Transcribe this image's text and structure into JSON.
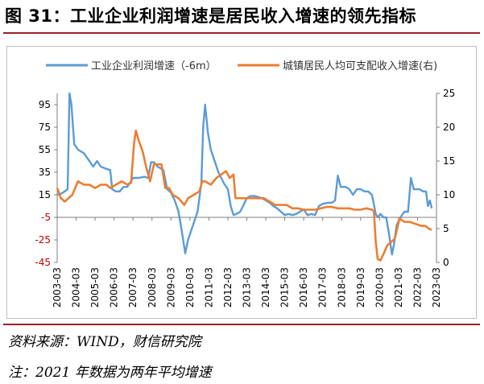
{
  "figure": {
    "title": "图 31：工业企业利润增速是居民收入增速的领先指标",
    "source": "资料来源：WIND，财信研究院",
    "note": "注：2021 年数据为两年平均增速"
  },
  "colors": {
    "series1": "#5b9bd5",
    "series2": "#ed7d31",
    "axis": "#7f7f7f",
    "left_tick": "#c00000",
    "accent_rule": "#9e1f28"
  },
  "chart_data": {
    "type": "line",
    "title": "",
    "legend_position": "top",
    "grid": false,
    "x_ticks": [
      "2003-03",
      "2004-03",
      "2005-03",
      "2006-03",
      "2007-03",
      "2008-03",
      "2009-03",
      "2010-03",
      "2011-03",
      "2012-03",
      "2013-03",
      "2014-03",
      "2015-03",
      "2016-03",
      "2017-03",
      "2018-03",
      "2019-03",
      "2020-03",
      "2021-03",
      "2022-03",
      "2023-03"
    ],
    "y_left": {
      "min": -45,
      "max": 105,
      "ticks": [
        95,
        75,
        55,
        35,
        15,
        -5,
        -25,
        -45
      ]
    },
    "y_right": {
      "min": 0,
      "max": 25,
      "ticks": [
        25,
        20,
        15,
        10,
        5,
        0
      ]
    },
    "series": [
      {
        "name": "工业企业利润增速（-6m）",
        "axis": "left",
        "points": [
          [
            2003.2,
            15
          ],
          [
            2003.4,
            16
          ],
          [
            2003.6,
            18
          ],
          [
            2003.75,
            20
          ],
          [
            2003.85,
            105
          ],
          [
            2003.95,
            95
          ],
          [
            2004.1,
            60
          ],
          [
            2004.3,
            55
          ],
          [
            2004.6,
            52
          ],
          [
            2004.9,
            45
          ],
          [
            2005.1,
            40
          ],
          [
            2005.3,
            45
          ],
          [
            2005.5,
            40
          ],
          [
            2005.8,
            38
          ],
          [
            2006.0,
            37
          ],
          [
            2006.1,
            20
          ],
          [
            2006.3,
            18
          ],
          [
            2006.5,
            18
          ],
          [
            2006.7,
            22
          ],
          [
            2006.9,
            22
          ],
          [
            2007.2,
            30
          ],
          [
            2007.5,
            30
          ],
          [
            2007.8,
            31
          ],
          [
            2008.0,
            30
          ],
          [
            2008.15,
            44
          ],
          [
            2008.3,
            44
          ],
          [
            2008.5,
            40
          ],
          [
            2008.8,
            37
          ],
          [
            2009.0,
            20
          ],
          [
            2009.2,
            17
          ],
          [
            2009.4,
            10
          ],
          [
            2009.6,
            0
          ],
          [
            2009.8,
            -20
          ],
          [
            2009.95,
            -37
          ],
          [
            2010.1,
            -25
          ],
          [
            2010.3,
            -15
          ],
          [
            2010.6,
            0
          ],
          [
            2010.8,
            25
          ],
          [
            2010.9,
            75
          ],
          [
            2011.0,
            95
          ],
          [
            2011.15,
            70
          ],
          [
            2011.3,
            55
          ],
          [
            2011.5,
            45
          ],
          [
            2011.7,
            35
          ],
          [
            2011.85,
            30
          ],
          [
            2012.0,
            25
          ],
          [
            2012.2,
            20
          ],
          [
            2012.35,
            5
          ],
          [
            2012.5,
            -3
          ],
          [
            2012.65,
            -2
          ],
          [
            2012.85,
            0
          ],
          [
            2013.0,
            5
          ],
          [
            2013.2,
            12
          ],
          [
            2013.4,
            14
          ],
          [
            2013.6,
            14
          ],
          [
            2013.8,
            13
          ],
          [
            2014.0,
            12
          ],
          [
            2014.2,
            10
          ],
          [
            2014.4,
            8
          ],
          [
            2014.6,
            5
          ],
          [
            2014.8,
            3
          ],
          [
            2015.0,
            0
          ],
          [
            2015.2,
            -3
          ],
          [
            2015.4,
            -2
          ],
          [
            2015.6,
            -3
          ],
          [
            2015.8,
            -2
          ],
          [
            2016.0,
            0
          ],
          [
            2016.2,
            2
          ],
          [
            2016.4,
            -3
          ],
          [
            2016.6,
            -2
          ],
          [
            2016.8,
            -3
          ],
          [
            2017.0,
            5
          ],
          [
            2017.2,
            7
          ],
          [
            2017.5,
            8
          ],
          [
            2017.7,
            8
          ],
          [
            2017.85,
            10
          ],
          [
            2018.0,
            32
          ],
          [
            2018.15,
            22
          ],
          [
            2018.4,
            22
          ],
          [
            2018.6,
            20
          ],
          [
            2018.8,
            15
          ],
          [
            2019.0,
            20
          ],
          [
            2019.2,
            20
          ],
          [
            2019.4,
            18
          ],
          [
            2019.6,
            18
          ],
          [
            2019.8,
            15
          ],
          [
            2020.0,
            -2
          ],
          [
            2020.1,
            -5
          ],
          [
            2020.25,
            -2
          ],
          [
            2020.4,
            -5
          ],
          [
            2020.55,
            -5
          ],
          [
            2020.7,
            -20
          ],
          [
            2020.85,
            -38
          ],
          [
            2020.95,
            -30
          ],
          [
            2021.1,
            -12
          ],
          [
            2021.3,
            -5
          ],
          [
            2021.5,
            0
          ],
          [
            2021.7,
            0
          ],
          [
            2021.85,
            30
          ],
          [
            2022.0,
            20
          ],
          [
            2022.3,
            20
          ],
          [
            2022.5,
            18
          ],
          [
            2022.65,
            18
          ],
          [
            2022.75,
            5
          ],
          [
            2022.85,
            10
          ],
          [
            2022.95,
            3
          ]
        ]
      },
      {
        "name": "城镇居民人均可支配收入增速(右)",
        "axis": "right",
        "points": [
          [
            2003.2,
            11.0
          ],
          [
            2003.4,
            9.5
          ],
          [
            2003.6,
            9.0
          ],
          [
            2003.8,
            9.5
          ],
          [
            2004.0,
            10.0
          ],
          [
            2004.3,
            12.0
          ],
          [
            2004.6,
            11.5
          ],
          [
            2004.9,
            11.5
          ],
          [
            2005.2,
            11.0
          ],
          [
            2005.5,
            11.5
          ],
          [
            2005.8,
            11.5
          ],
          [
            2006.0,
            11.0
          ],
          [
            2006.3,
            11.5
          ],
          [
            2006.6,
            12.0
          ],
          [
            2006.9,
            11.5
          ],
          [
            2007.1,
            11.8
          ],
          [
            2007.25,
            17.5
          ],
          [
            2007.35,
            19.5
          ],
          [
            2007.5,
            18.0
          ],
          [
            2007.7,
            16.5
          ],
          [
            2007.9,
            14.0
          ],
          [
            2008.1,
            12.0
          ],
          [
            2008.3,
            14.5
          ],
          [
            2008.5,
            14.5
          ],
          [
            2008.7,
            14.5
          ],
          [
            2008.9,
            11.0
          ],
          [
            2009.1,
            11.0
          ],
          [
            2009.3,
            10.0
          ],
          [
            2009.6,
            9.5
          ],
          [
            2009.9,
            8.5
          ],
          [
            2010.1,
            9.5
          ],
          [
            2010.4,
            10.0
          ],
          [
            2010.7,
            10.5
          ],
          [
            2010.85,
            12.0
          ],
          [
            2011.0,
            12.0
          ],
          [
            2011.3,
            11.5
          ],
          [
            2011.6,
            12.5
          ],
          [
            2011.85,
            13.0
          ],
          [
            2012.1,
            13.5
          ],
          [
            2012.3,
            12.5
          ],
          [
            2012.5,
            13.0
          ],
          [
            2012.6,
            9.5
          ],
          [
            2012.9,
            9.5
          ],
          [
            2013.2,
            9.5
          ],
          [
            2013.5,
            9.5
          ],
          [
            2013.8,
            9.5
          ],
          [
            2014.1,
            9.5
          ],
          [
            2014.4,
            9.0
          ],
          [
            2014.7,
            8.5
          ],
          [
            2015.0,
            8.5
          ],
          [
            2015.3,
            8.5
          ],
          [
            2015.6,
            8.0
          ],
          [
            2015.9,
            8.0
          ],
          [
            2016.2,
            7.8
          ],
          [
            2016.5,
            7.8
          ],
          [
            2016.8,
            7.8
          ],
          [
            2017.1,
            8.0
          ],
          [
            2017.4,
            8.2
          ],
          [
            2017.7,
            8.2
          ],
          [
            2018.0,
            8.0
          ],
          [
            2018.3,
            8.0
          ],
          [
            2018.6,
            8.0
          ],
          [
            2018.9,
            7.8
          ],
          [
            2019.2,
            7.8
          ],
          [
            2019.5,
            8.0
          ],
          [
            2019.8,
            7.8
          ],
          [
            2019.9,
            7.6
          ],
          [
            2020.0,
            3.0
          ],
          [
            2020.1,
            0.5
          ],
          [
            2020.25,
            0.3
          ],
          [
            2020.45,
            1.5
          ],
          [
            2020.6,
            2.5
          ],
          [
            2020.8,
            3.0
          ],
          [
            2021.0,
            3.5
          ],
          [
            2021.25,
            6.5
          ],
          [
            2021.5,
            6.0
          ],
          [
            2021.8,
            6.0
          ],
          [
            2022.0,
            5.8
          ],
          [
            2022.2,
            5.6
          ],
          [
            2022.4,
            5.4
          ],
          [
            2022.6,
            5.4
          ],
          [
            2022.8,
            5.0
          ],
          [
            2022.95,
            4.8
          ]
        ]
      }
    ]
  }
}
